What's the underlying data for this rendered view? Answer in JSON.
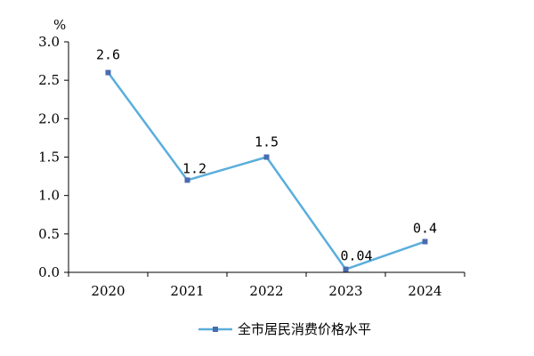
{
  "chart_data": {
    "type": "line",
    "title": "",
    "xlabel": "",
    "ylabel": "%",
    "categories": [
      "2020",
      "2021",
      "2022",
      "2023",
      "2024"
    ],
    "series": [
      {
        "name": "全市居民消费价格水平",
        "values": [
          2.6,
          1.2,
          1.5,
          0.04,
          0.4
        ],
        "data_labels": [
          "2.6",
          "1.2",
          "1.5",
          "0.04",
          "0.4"
        ],
        "color": "#5AAEDC",
        "marker_color": "#4A6BB0"
      }
    ],
    "ylim": [
      0,
      3.0
    ],
    "y_ticks": [
      "3.0",
      "2.5",
      "2.0",
      "1.5",
      "1.0",
      "0.5",
      "0.0"
    ],
    "y_tick_values": [
      3.0,
      2.5,
      2.0,
      1.5,
      1.0,
      0.5,
      0.0
    ],
    "grid": false,
    "legend": "bottom"
  }
}
